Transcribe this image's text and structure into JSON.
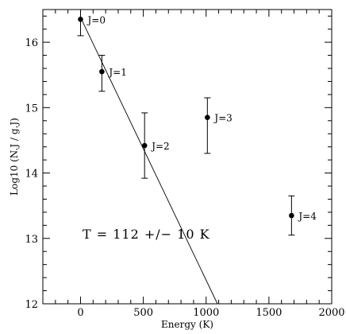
{
  "chart_data": {
    "type": "scatter",
    "xlabel": "Energy (K)",
    "ylabel": "Log10 (N.J / g.J)",
    "xlim": [
      -300,
      2000
    ],
    "ylim": [
      12,
      16.5
    ],
    "x_ticks": [
      0,
      500,
      1000,
      1500,
      2000
    ],
    "y_ticks": [
      12,
      13,
      14,
      15,
      16
    ],
    "grid": false,
    "series": [
      {
        "points": [
          {
            "label": "J=0",
            "x": 0,
            "y": 16.35,
            "err_low": 0.25,
            "err_high": 0.15
          },
          {
            "label": "J=1",
            "x": 170,
            "y": 15.55,
            "err_low": 0.3,
            "err_high": 0.25
          },
          {
            "label": "J=2",
            "x": 510,
            "y": 14.42,
            "err_low": 0.5,
            "err_high": 0.5
          },
          {
            "label": "J=3",
            "x": 1010,
            "y": 14.85,
            "err_low": 0.55,
            "err_high": 0.3
          },
          {
            "label": "J=4",
            "x": 1680,
            "y": 13.35,
            "err_low": 0.3,
            "err_high": 0.3
          }
        ]
      }
    ],
    "fit_line": {
      "x": [
        0,
        1090
      ],
      "y": [
        16.38,
        12
      ]
    },
    "annotation": "T = 112 +/− 10 K"
  }
}
